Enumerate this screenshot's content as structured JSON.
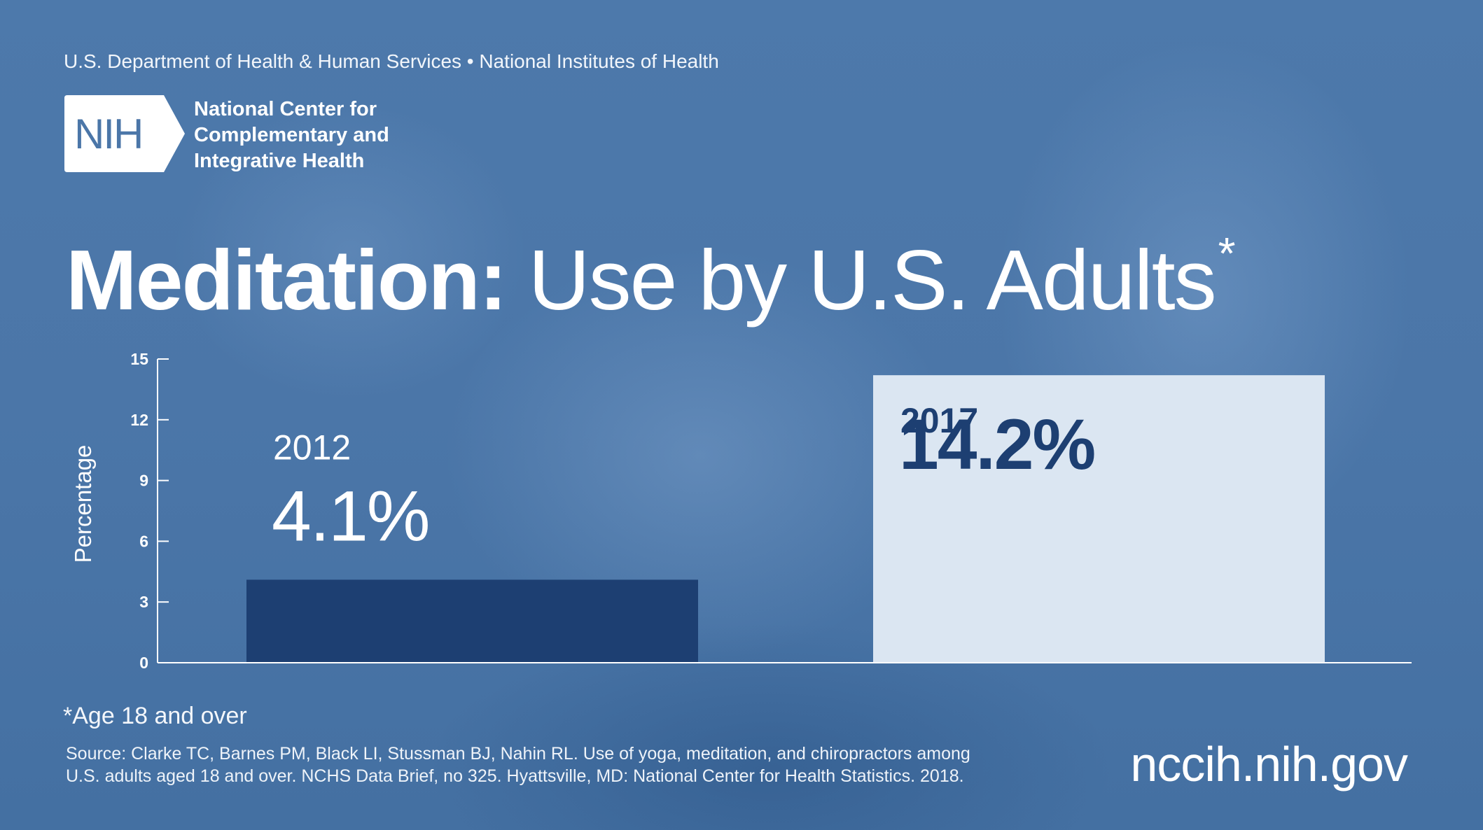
{
  "header": {
    "agency_line": "U.S. Department of Health & Human Services • National Institutes of Health",
    "logo_text": "NIH",
    "center_name_lines": [
      "National Center for",
      "Complementary and",
      "Integrative Health"
    ]
  },
  "title": {
    "bold": "Meditation:",
    "light": "Use by U.S. Adults",
    "marker": "*"
  },
  "chart_data": {
    "type": "bar",
    "categories": [
      "2012",
      "2017"
    ],
    "values": [
      4.1,
      14.2
    ],
    "value_labels": [
      "4.1%",
      "14.2%"
    ],
    "ylabel": "Percentage",
    "ylim": [
      0,
      15
    ],
    "yticks": [
      0,
      3,
      6,
      9,
      12,
      15
    ],
    "bar_colors": [
      "#1d3f72",
      "#dbe6f2"
    ],
    "label_colors": [
      "#ffffff",
      "#1d3f72"
    ],
    "grid": false
  },
  "footer": {
    "footnote": "*Age 18 and over",
    "source_lines": [
      "Source: Clarke TC, Barnes PM, Black LI, Stussman BJ, Nahin RL. Use of yoga, meditation, and chiropractors among",
      "U.S. adults aged 18 and over. NCHS Data Brief, no 325. Hyattsville, MD: National Center for Health Statistics. 2018."
    ],
    "url": "nccih.nih.gov"
  }
}
